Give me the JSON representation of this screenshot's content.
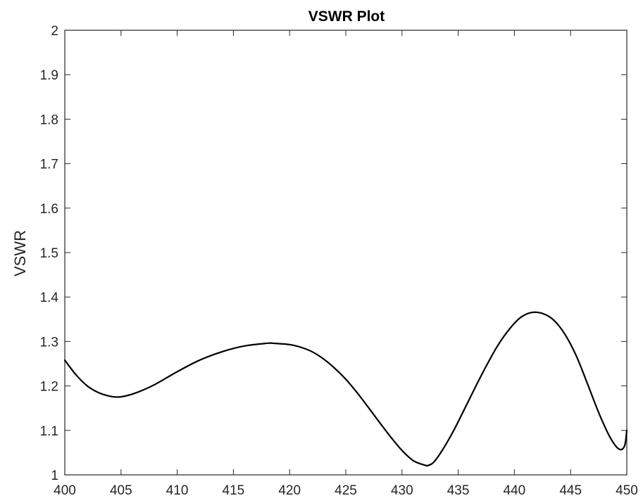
{
  "chart_data": {
    "type": "line",
    "title": "VSWR Plot",
    "xlabel": "",
    "ylabel": "VSWR",
    "xlim": [
      400,
      450
    ],
    "ylim": [
      1,
      2
    ],
    "xticks": [
      400,
      405,
      410,
      415,
      420,
      425,
      430,
      435,
      440,
      445,
      450
    ],
    "yticks": [
      1,
      1.1,
      1.2,
      1.3,
      1.4,
      1.5,
      1.6,
      1.7,
      1.8,
      1.9,
      2
    ],
    "grid": false,
    "line_color": "#000000",
    "series": [
      {
        "x": [
          400,
          401,
          402,
          403,
          404,
          404.7,
          405.5,
          406.5,
          408,
          410,
          412,
          414,
          416,
          418,
          418.5,
          420,
          421,
          422,
          423,
          424,
          425,
          426,
          427,
          428,
          429,
          430,
          431,
          432,
          432.3,
          432.8,
          433.5,
          434.5,
          435.5,
          436.5,
          437.5,
          438.5,
          439.5,
          440.5,
          441.5,
          442.5,
          443.5,
          444.5,
          445.5,
          446.5,
          447.5,
          448.5,
          449.3,
          449.8,
          450
        ],
        "y": [
          1.258,
          1.225,
          1.2,
          1.185,
          1.177,
          1.175,
          1.178,
          1.186,
          1.203,
          1.232,
          1.258,
          1.277,
          1.29,
          1.296,
          1.296,
          1.293,
          1.287,
          1.277,
          1.261,
          1.24,
          1.215,
          1.185,
          1.152,
          1.118,
          1.085,
          1.055,
          1.032,
          1.022,
          1.021,
          1.028,
          1.052,
          1.095,
          1.145,
          1.196,
          1.245,
          1.29,
          1.326,
          1.353,
          1.365,
          1.363,
          1.348,
          1.316,
          1.268,
          1.205,
          1.14,
          1.085,
          1.058,
          1.065,
          1.1
        ]
      }
    ]
  }
}
